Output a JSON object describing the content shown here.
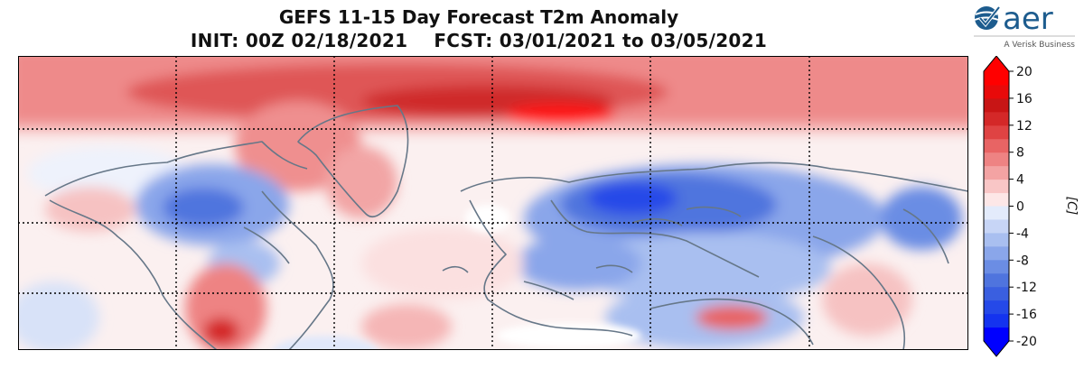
{
  "title": {
    "line1": "GEFS 11-15 Day Forecast T2m Anomaly",
    "line2": "INIT: 00Z 02/18/2021    FCST: 03/01/2021 to 03/05/2021"
  },
  "logo": {
    "name": "aer",
    "tagline": "A Verisk Business",
    "icon": "aer-globe-check-icon"
  },
  "colorbar": {
    "ticks": [
      "20",
      "16",
      "12",
      "8",
      "4",
      "0",
      "-4",
      "-8",
      "-12",
      "-16",
      "-20"
    ],
    "unit": "[C]",
    "colors_warm": [
      "#fde7e7",
      "#f9c6c6",
      "#f3a3a3",
      "#ee8383",
      "#e86464",
      "#df4343",
      "#d42828",
      "#c81515",
      "#e80a0a",
      "#ff0000"
    ],
    "colors_cold": [
      "#e3ebfb",
      "#c7d5f6",
      "#a9bff0",
      "#8aa6ea",
      "#6b8de4",
      "#4f74de",
      "#3a5fe0",
      "#2549e8",
      "#1433ef",
      "#0000ff"
    ]
  }
}
